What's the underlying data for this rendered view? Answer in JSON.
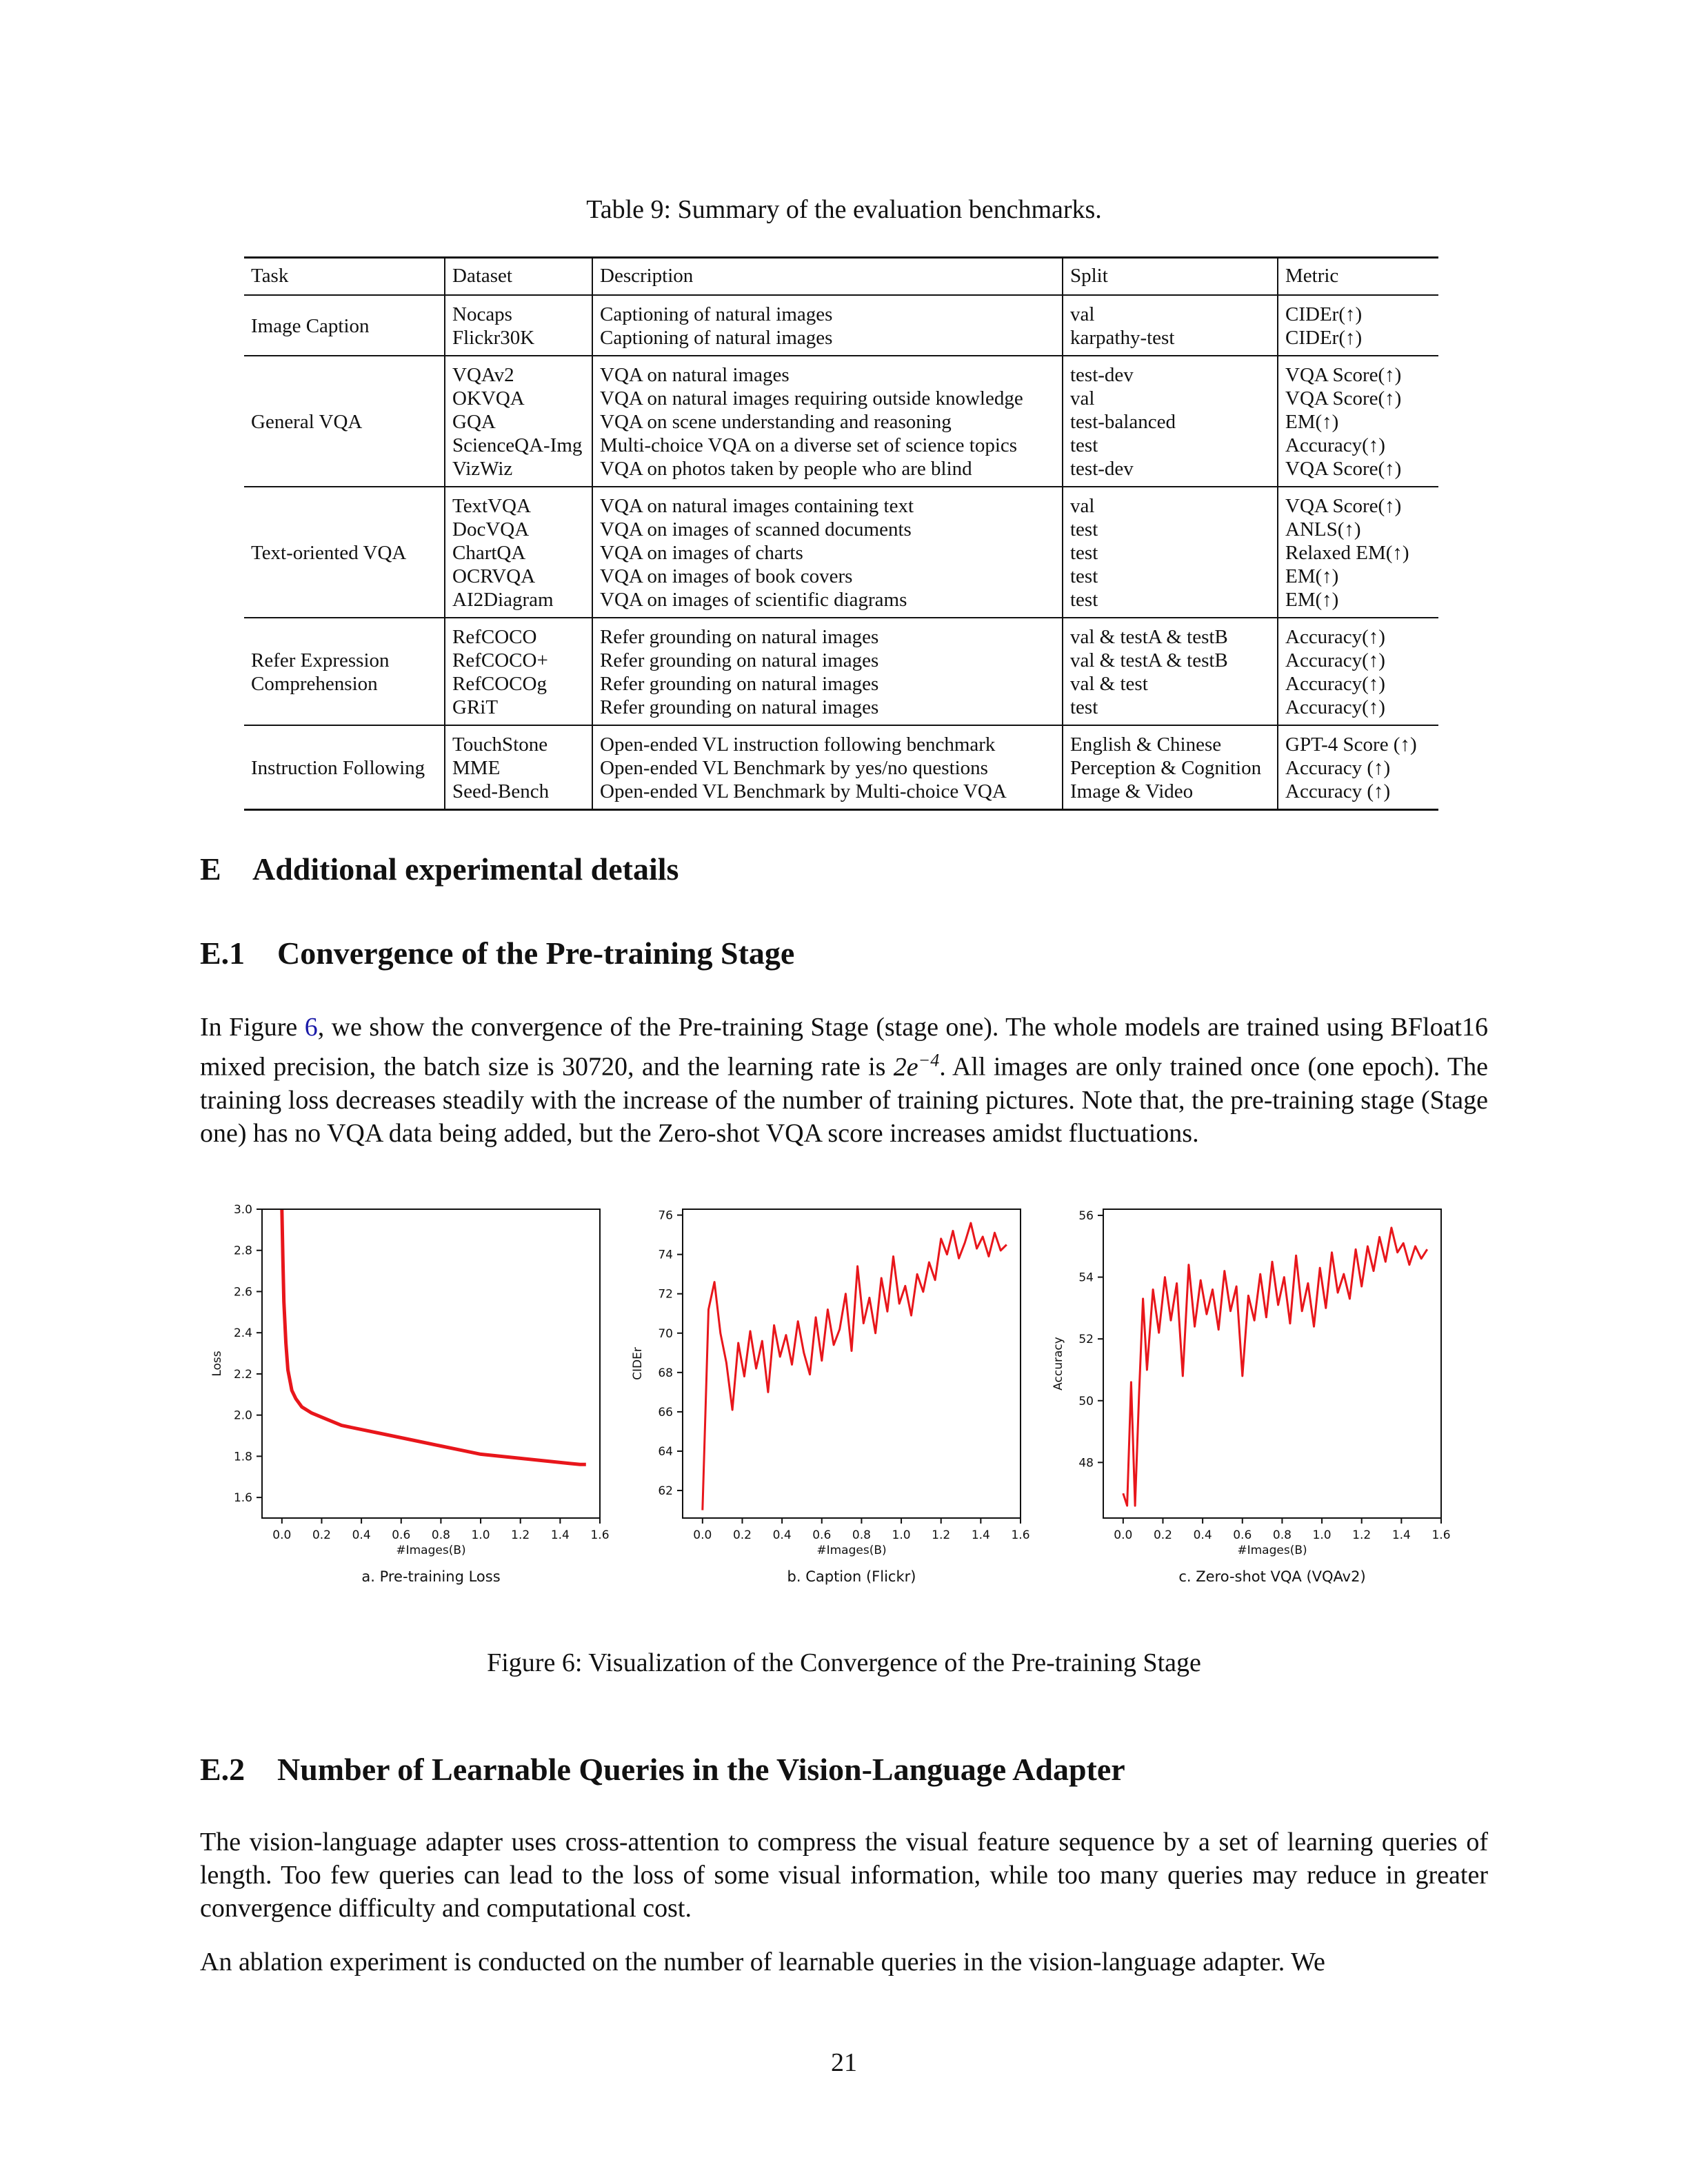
{
  "table": {
    "caption": "Table 9: Summary of the evaluation benchmarks.",
    "headers": [
      "Task",
      "Dataset",
      "Description",
      "Split",
      "Metric"
    ],
    "groups": [
      {
        "task": "Image Caption",
        "rows": [
          {
            "dataset": "Nocaps",
            "description": "Captioning of natural images",
            "split": "val",
            "metric": "CIDEr(↑)"
          },
          {
            "dataset": "Flickr30K",
            "description": "Captioning of natural images",
            "split": "karpathy-test",
            "metric": "CIDEr(↑)"
          }
        ]
      },
      {
        "task": "General VQA",
        "rows": [
          {
            "dataset": "VQAv2",
            "description": "VQA on natural images",
            "split": "test-dev",
            "metric": "VQA Score(↑)"
          },
          {
            "dataset": "OKVQA",
            "description": "VQA on natural images requiring outside knowledge",
            "split": "val",
            "metric": "VQA Score(↑)"
          },
          {
            "dataset": "GQA",
            "description": "VQA on scene understanding and reasoning",
            "split": "test-balanced",
            "metric": "EM(↑)"
          },
          {
            "dataset": "ScienceQA-Img",
            "description": "Multi-choice VQA on a diverse set of science topics",
            "split": "test",
            "metric": "Accuracy(↑)"
          },
          {
            "dataset": "VizWiz",
            "description": "VQA on photos taken by people who are blind",
            "split": "test-dev",
            "metric": "VQA Score(↑)"
          }
        ]
      },
      {
        "task": "Text-oriented VQA",
        "rows": [
          {
            "dataset": "TextVQA",
            "description": "VQA on natural images containing text",
            "split": "val",
            "metric": "VQA Score(↑)"
          },
          {
            "dataset": "DocVQA",
            "description": "VQA on images of scanned documents",
            "split": "test",
            "metric": "ANLS(↑)"
          },
          {
            "dataset": "ChartQA",
            "description": "VQA on images of charts",
            "split": "test",
            "metric": "Relaxed EM(↑)"
          },
          {
            "dataset": "OCRVQA",
            "description": "VQA on images of book covers",
            "split": "test",
            "metric": "EM(↑)"
          },
          {
            "dataset": "AI2Diagram",
            "description": "VQA on images of scientific diagrams",
            "split": "test",
            "metric": "EM(↑)"
          }
        ]
      },
      {
        "task": "Refer Expression\nComprehension",
        "rows": [
          {
            "dataset": "RefCOCO",
            "description": "Refer grounding on natural images",
            "split": "val & testA & testB",
            "metric": "Accuracy(↑)"
          },
          {
            "dataset": "RefCOCO+",
            "description": "Refer grounding on natural images",
            "split": "val & testA & testB",
            "metric": "Accuracy(↑)"
          },
          {
            "dataset": "RefCOCOg",
            "description": "Refer grounding on natural images",
            "split": "val & test",
            "metric": "Accuracy(↑)"
          },
          {
            "dataset": "GRiT",
            "description": "Refer grounding on natural images",
            "split": "test",
            "metric": "Accuracy(↑)"
          }
        ]
      },
      {
        "task": "Instruction Following",
        "rows": [
          {
            "dataset": "TouchStone",
            "description": "Open-ended VL instruction following benchmark",
            "split": "English & Chinese",
            "metric": "GPT-4 Score (↑)"
          },
          {
            "dataset": "MME",
            "description": "Open-ended VL Benchmark by yes/no questions",
            "split": "Perception & Cognition",
            "metric": "Accuracy (↑)"
          },
          {
            "dataset": "Seed-Bench",
            "description": "Open-ended VL Benchmark by Multi-choice VQA",
            "split": "Image & Video",
            "metric": "Accuracy (↑)"
          }
        ]
      }
    ]
  },
  "section_e": {
    "number": "E",
    "title": "Additional experimental details"
  },
  "section_e1": {
    "number": "E.1",
    "title": "Convergence of the Pre-training Stage",
    "para_prefix": "In Figure ",
    "para_link": "6",
    "para_mid": ", we show the convergence of the Pre-training Stage (stage one). The whole models are trained using BFloat16 mixed precision, the batch size is 30720, and the learning rate is ",
    "lr_base": "2e",
    "lr_exp": "−4",
    "para_suffix": ". All images are only trained once (one epoch). The training loss decreases steadily with the increase of the number of training pictures. Note that, the pre-training stage (Stage one) has no VQA data being added, but the Zero-shot VQA score increases amidst fluctuations."
  },
  "figure": {
    "caption": "Figure 6: Visualization of the Convergence of the Pre-training Stage"
  },
  "chart_data": [
    {
      "type": "line",
      "title": "a. Pre-training Loss",
      "xlabel": "#Images(B)",
      "ylabel": "Loss",
      "xlim": [
        -0.1,
        1.6
      ],
      "ylim": [
        1.5,
        3.0
      ],
      "xticks": [
        "0.0",
        "0.2",
        "0.4",
        "0.6",
        "0.8",
        "1.0",
        "1.2",
        "1.4",
        "1.6"
      ],
      "yticks": [
        "1.6",
        "1.8",
        "2.0",
        "2.2",
        "2.4",
        "2.6",
        "2.8",
        "3.0"
      ],
      "color": "#e8161b",
      "series": [
        {
          "x": [
            0.0,
            0.005,
            0.01,
            0.02,
            0.03,
            0.05,
            0.07,
            0.1,
            0.15,
            0.2,
            0.3,
            0.4,
            0.5,
            0.6,
            0.7,
            0.8,
            0.9,
            1.0,
            1.1,
            1.2,
            1.3,
            1.4,
            1.45,
            1.5,
            1.53
          ],
          "y": [
            3.0,
            2.75,
            2.55,
            2.35,
            2.22,
            2.12,
            2.08,
            2.04,
            2.01,
            1.99,
            1.95,
            1.93,
            1.91,
            1.89,
            1.87,
            1.85,
            1.83,
            1.81,
            1.8,
            1.79,
            1.78,
            1.77,
            1.765,
            1.76,
            1.76
          ]
        }
      ]
    },
    {
      "type": "line",
      "title": "b. Caption (Flickr)",
      "xlabel": "#Images(B)",
      "ylabel": "CIDEr",
      "xlim": [
        -0.1,
        1.6
      ],
      "ylim": [
        60.6,
        76.3
      ],
      "xticks": [
        "0.0",
        "0.2",
        "0.4",
        "0.6",
        "0.8",
        "1.0",
        "1.2",
        "1.4",
        "1.6"
      ],
      "yticks": [
        "62",
        "64",
        "66",
        "68",
        "70",
        "72",
        "74",
        "76"
      ],
      "color": "#e8161b",
      "series": [
        {
          "x": [
            0.0,
            0.03,
            0.06,
            0.09,
            0.12,
            0.15,
            0.18,
            0.21,
            0.24,
            0.27,
            0.3,
            0.33,
            0.36,
            0.39,
            0.42,
            0.45,
            0.48,
            0.51,
            0.54,
            0.57,
            0.6,
            0.63,
            0.66,
            0.69,
            0.72,
            0.75,
            0.78,
            0.81,
            0.84,
            0.87,
            0.9,
            0.93,
            0.96,
            0.99,
            1.02,
            1.05,
            1.08,
            1.11,
            1.14,
            1.17,
            1.2,
            1.23,
            1.26,
            1.29,
            1.32,
            1.35,
            1.38,
            1.41,
            1.44,
            1.47,
            1.5,
            1.53
          ],
          "y": [
            61.0,
            71.2,
            72.6,
            70.0,
            68.5,
            66.1,
            69.5,
            67.8,
            70.1,
            68.2,
            69.6,
            67.0,
            70.4,
            68.8,
            69.9,
            68.4,
            70.6,
            69.0,
            67.9,
            70.8,
            68.6,
            71.2,
            69.4,
            70.2,
            72.0,
            69.1,
            73.4,
            70.5,
            71.8,
            70.0,
            72.8,
            71.1,
            73.9,
            71.5,
            72.4,
            70.9,
            73.0,
            72.1,
            73.6,
            72.7,
            74.8,
            74.0,
            75.2,
            73.8,
            74.6,
            75.6,
            74.3,
            74.9,
            73.9,
            75.1,
            74.2,
            74.5
          ]
        }
      ]
    },
    {
      "type": "line",
      "title": "c. Zero-shot VQA (VQAv2)",
      "xlabel": "#Images(B)",
      "ylabel": "Accuracy",
      "xlim": [
        -0.1,
        1.6
      ],
      "ylim": [
        46.2,
        56.2
      ],
      "xticks": [
        "0.0",
        "0.2",
        "0.4",
        "0.6",
        "0.8",
        "1.0",
        "1.2",
        "1.4",
        "1.6"
      ],
      "yticks": [
        "48",
        "50",
        "52",
        "54",
        "56"
      ],
      "color": "#e8161b",
      "series": [
        {
          "x": [
            0.0,
            0.02,
            0.04,
            0.06,
            0.08,
            0.1,
            0.12,
            0.15,
            0.18,
            0.21,
            0.24,
            0.27,
            0.3,
            0.33,
            0.36,
            0.39,
            0.42,
            0.45,
            0.48,
            0.51,
            0.54,
            0.57,
            0.6,
            0.63,
            0.66,
            0.69,
            0.72,
            0.75,
            0.78,
            0.81,
            0.84,
            0.87,
            0.9,
            0.93,
            0.96,
            0.99,
            1.02,
            1.05,
            1.08,
            1.11,
            1.14,
            1.17,
            1.2,
            1.23,
            1.26,
            1.29,
            1.32,
            1.35,
            1.38,
            1.41,
            1.44,
            1.47,
            1.5,
            1.53
          ],
          "y": [
            47.0,
            46.6,
            50.6,
            46.6,
            50.2,
            53.3,
            51.0,
            53.6,
            52.2,
            54.0,
            52.6,
            53.8,
            50.8,
            54.4,
            52.4,
            53.9,
            52.8,
            53.6,
            52.3,
            54.2,
            52.9,
            53.7,
            50.8,
            53.4,
            52.6,
            54.1,
            52.7,
            54.5,
            53.1,
            54.0,
            52.5,
            54.7,
            52.9,
            53.8,
            52.4,
            54.3,
            53.0,
            54.8,
            53.5,
            54.1,
            53.3,
            54.9,
            53.7,
            55.0,
            54.2,
            55.3,
            54.5,
            55.6,
            54.8,
            55.1,
            54.4,
            55.0,
            54.6,
            54.9
          ]
        }
      ]
    }
  ],
  "section_e2": {
    "number": "E.2",
    "title": "Number of Learnable Queries in the Vision-Language Adapter",
    "para1": "The vision-language adapter uses cross-attention to compress the visual feature sequence by a set of learning queries of length. Too few queries can lead to the loss of some visual information, while too many queries may reduce in greater convergence difficulty and computational cost.",
    "para2": "An ablation experiment is conducted on the number of learnable queries in the vision-language adapter. We"
  },
  "page_number": "21"
}
